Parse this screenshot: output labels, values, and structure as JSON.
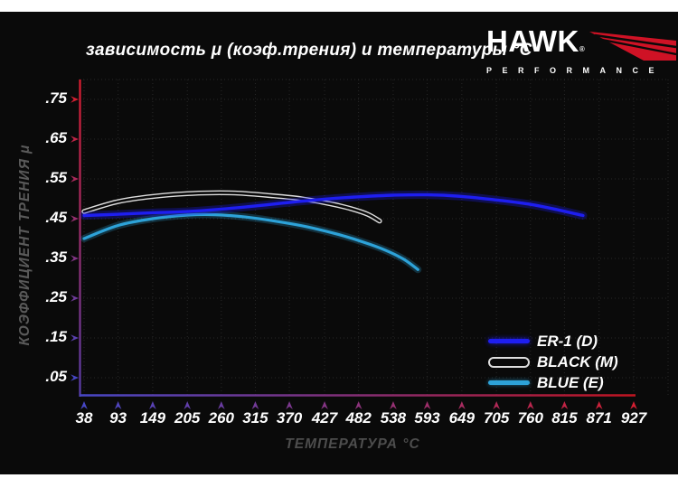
{
  "title": "зависимость μ (коэф.трения) и температуры °C",
  "logo": {
    "brand": "HAWK",
    "registered": "®",
    "subtitle": "PERFORMANCE"
  },
  "colors": {
    "background": "#0a0a0a",
    "page_margin": "#ffffff",
    "grid": "#282828",
    "tick_label": "#ffffff",
    "axis_title_gray": "#555555",
    "brand_red": "#cf1225",
    "axis_gradient_cold": "#4747c6",
    "axis_gradient_hot": "#d41f32",
    "series_er1_blue": "#1e1ef0",
    "series_black_outline": "#dedede",
    "series_black_core": "#0a0a0a",
    "series_blue_cyan": "#2da2d8"
  },
  "chart_data": {
    "type": "line",
    "title": "зависимость μ (коэф.трения) и температуры °C",
    "xlabel": "ТЕМПЕРАТУРА °C",
    "ylabel": "КОЭФФИЦИЕНТ ТРЕНИЯ μ",
    "xlim": [
      38,
      927
    ],
    "ylim": [
      0,
      0.8
    ],
    "grid": true,
    "legend_position": "lower right",
    "x_ticks": [
      38,
      93,
      149,
      205,
      260,
      315,
      370,
      427,
      482,
      538,
      593,
      649,
      705,
      760,
      815,
      871,
      927
    ],
    "y_ticks": [
      0.05,
      0.15,
      0.25,
      0.35,
      0.45,
      0.55,
      0.65,
      0.75
    ],
    "y_tick_labels": [
      ".05",
      ".15",
      ".25",
      ".35",
      ".45",
      ".55",
      ".65",
      ".75"
    ],
    "series": [
      {
        "name": "ER-1 (D)",
        "color": "#1e1ef0",
        "points": [
          [
            38,
            0.458
          ],
          [
            90,
            0.461
          ],
          [
            150,
            0.465
          ],
          [
            205,
            0.468
          ],
          [
            260,
            0.474
          ],
          [
            315,
            0.482
          ],
          [
            370,
            0.491
          ],
          [
            427,
            0.499
          ],
          [
            482,
            0.505
          ],
          [
            538,
            0.509
          ],
          [
            593,
            0.51
          ],
          [
            649,
            0.506
          ],
          [
            705,
            0.497
          ],
          [
            760,
            0.486
          ],
          [
            805,
            0.472
          ],
          [
            845,
            0.458
          ]
        ]
      },
      {
        "name": "BLACK (M)",
        "color": "#0a0a0a",
        "outline": "#dedede",
        "points": [
          [
            38,
            0.468
          ],
          [
            93,
            0.493
          ],
          [
            149,
            0.506
          ],
          [
            205,
            0.513
          ],
          [
            245,
            0.515
          ],
          [
            290,
            0.514
          ],
          [
            340,
            0.508
          ],
          [
            390,
            0.5
          ],
          [
            435,
            0.488
          ],
          [
            470,
            0.475
          ],
          [
            497,
            0.461
          ],
          [
            516,
            0.444
          ]
        ]
      },
      {
        "name": "BLUE (E)",
        "color": "#2da2d8",
        "points": [
          [
            38,
            0.4
          ],
          [
            93,
            0.433
          ],
          [
            149,
            0.45
          ],
          [
            205,
            0.459
          ],
          [
            250,
            0.46
          ],
          [
            300,
            0.454
          ],
          [
            350,
            0.443
          ],
          [
            400,
            0.429
          ],
          [
            450,
            0.41
          ],
          [
            490,
            0.391
          ],
          [
            525,
            0.371
          ],
          [
            555,
            0.348
          ],
          [
            578,
            0.322
          ]
        ]
      }
    ]
  }
}
